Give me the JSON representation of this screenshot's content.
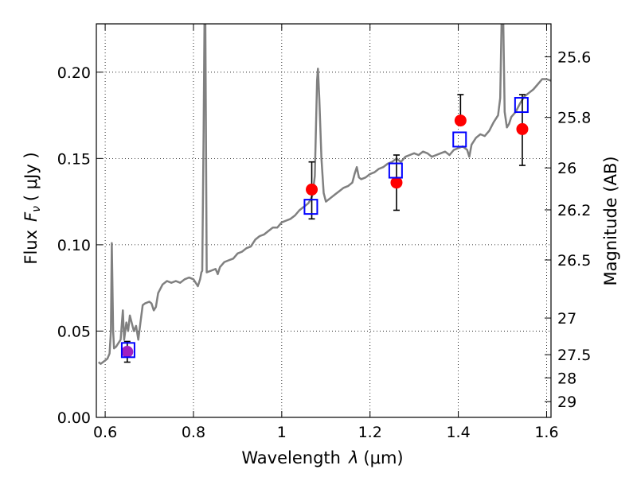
{
  "chart_data": {
    "type": "scatter",
    "xlabel": "Wavelength",
    "xlabel_symbol": "λ",
    "xlabel_unit": "(μm)",
    "ylabel": "Flux",
    "ylabel_symbol": "F",
    "ylabel_subscript": "ν",
    "ylabel_unit": "( μJy )",
    "y2label": "Magnitude (AB)",
    "xlim": [
      0.58,
      1.61
    ],
    "ylim": [
      0.0,
      0.228
    ],
    "grid": true,
    "x_ticks": [
      0.6,
      0.8,
      1.0,
      1.2,
      1.4,
      1.6
    ],
    "x_tick_labels": [
      "0.6",
      "0.8",
      "1",
      "1.2",
      "1.4",
      "1.6"
    ],
    "y_ticks": [
      0.0,
      0.05,
      0.1,
      0.15,
      0.2
    ],
    "y_tick_labels": [
      "0.00",
      "0.05",
      "0.10",
      "0.15",
      "0.20"
    ],
    "mag_ticks": [
      {
        "label": "25.6",
        "mag": 25.6
      },
      {
        "label": "25.8",
        "mag": 25.8
      },
      {
        "label": "26",
        "mag": 26.0
      },
      {
        "label": "26.2",
        "mag": 26.2
      },
      {
        "label": "26.5",
        "mag": 26.5
      },
      {
        "label": "27",
        "mag": 27.0
      },
      {
        "label": "27.5",
        "mag": 27.5
      },
      {
        "label": "28",
        "mag": 28.0
      },
      {
        "label": "29",
        "mag": 29.0
      }
    ],
    "series": [
      {
        "kind": "model-spectrum",
        "color": "#808080",
        "points": [
          [
            0.585,
            0.032
          ],
          [
            0.59,
            0.031
          ],
          [
            0.595,
            0.032
          ],
          [
            0.6,
            0.033
          ],
          [
            0.605,
            0.034
          ],
          [
            0.61,
            0.037
          ],
          [
            0.613,
            0.05
          ],
          [
            0.615,
            0.101
          ],
          [
            0.618,
            0.05
          ],
          [
            0.62,
            0.04
          ],
          [
            0.625,
            0.041
          ],
          [
            0.63,
            0.043
          ],
          [
            0.635,
            0.045
          ],
          [
            0.64,
            0.062
          ],
          [
            0.643,
            0.045
          ],
          [
            0.648,
            0.055
          ],
          [
            0.652,
            0.05
          ],
          [
            0.656,
            0.059
          ],
          [
            0.66,
            0.055
          ],
          [
            0.665,
            0.05
          ],
          [
            0.67,
            0.053
          ],
          [
            0.675,
            0.045
          ],
          [
            0.68,
            0.055
          ],
          [
            0.685,
            0.065
          ],
          [
            0.69,
            0.066
          ],
          [
            0.7,
            0.067
          ],
          [
            0.705,
            0.066
          ],
          [
            0.71,
            0.062
          ],
          [
            0.715,
            0.064
          ],
          [
            0.72,
            0.072
          ],
          [
            0.73,
            0.077
          ],
          [
            0.74,
            0.079
          ],
          [
            0.75,
            0.078
          ],
          [
            0.76,
            0.079
          ],
          [
            0.77,
            0.078
          ],
          [
            0.78,
            0.08
          ],
          [
            0.79,
            0.081
          ],
          [
            0.8,
            0.08
          ],
          [
            0.81,
            0.076
          ],
          [
            0.815,
            0.08
          ],
          [
            0.818,
            0.084
          ],
          [
            0.82,
            0.085
          ],
          [
            0.823,
            0.165
          ],
          [
            0.825,
            0.228
          ],
          [
            0.827,
            0.228
          ],
          [
            0.83,
            0.084
          ],
          [
            0.84,
            0.085
          ],
          [
            0.85,
            0.086
          ],
          [
            0.855,
            0.083
          ],
          [
            0.86,
            0.087
          ],
          [
            0.87,
            0.09
          ],
          [
            0.88,
            0.091
          ],
          [
            0.89,
            0.092
          ],
          [
            0.9,
            0.095
          ],
          [
            0.91,
            0.096
          ],
          [
            0.92,
            0.098
          ],
          [
            0.93,
            0.099
          ],
          [
            0.94,
            0.103
          ],
          [
            0.95,
            0.105
          ],
          [
            0.96,
            0.106
          ],
          [
            0.97,
            0.108
          ],
          [
            0.98,
            0.11
          ],
          [
            0.99,
            0.11
          ],
          [
            1.0,
            0.113
          ],
          [
            1.01,
            0.114
          ],
          [
            1.02,
            0.115
          ],
          [
            1.03,
            0.117
          ],
          [
            1.04,
            0.12
          ],
          [
            1.05,
            0.122
          ],
          [
            1.06,
            0.124
          ],
          [
            1.065,
            0.126
          ],
          [
            1.07,
            0.129
          ],
          [
            1.075,
            0.14
          ],
          [
            1.08,
            0.195
          ],
          [
            1.082,
            0.202
          ],
          [
            1.085,
            0.185
          ],
          [
            1.09,
            0.15
          ],
          [
            1.095,
            0.13
          ],
          [
            1.1,
            0.125
          ],
          [
            1.11,
            0.127
          ],
          [
            1.12,
            0.129
          ],
          [
            1.13,
            0.131
          ],
          [
            1.14,
            0.133
          ],
          [
            1.15,
            0.134
          ],
          [
            1.16,
            0.136
          ],
          [
            1.165,
            0.141
          ],
          [
            1.17,
            0.145
          ],
          [
            1.175,
            0.139
          ],
          [
            1.18,
            0.138
          ],
          [
            1.19,
            0.139
          ],
          [
            1.2,
            0.141
          ],
          [
            1.21,
            0.142
          ],
          [
            1.22,
            0.144
          ],
          [
            1.23,
            0.145
          ],
          [
            1.24,
            0.147
          ],
          [
            1.25,
            0.148
          ],
          [
            1.26,
            0.15
          ],
          [
            1.27,
            0.148
          ],
          [
            1.28,
            0.151
          ],
          [
            1.29,
            0.152
          ],
          [
            1.3,
            0.153
          ],
          [
            1.31,
            0.152
          ],
          [
            1.32,
            0.154
          ],
          [
            1.33,
            0.153
          ],
          [
            1.34,
            0.151
          ],
          [
            1.35,
            0.152
          ],
          [
            1.36,
            0.153
          ],
          [
            1.37,
            0.154
          ],
          [
            1.38,
            0.152
          ],
          [
            1.39,
            0.155
          ],
          [
            1.4,
            0.156
          ],
          [
            1.41,
            0.157
          ],
          [
            1.42,
            0.155
          ],
          [
            1.425,
            0.151
          ],
          [
            1.43,
            0.158
          ],
          [
            1.44,
            0.162
          ],
          [
            1.45,
            0.164
          ],
          [
            1.46,
            0.163
          ],
          [
            1.47,
            0.166
          ],
          [
            1.48,
            0.171
          ],
          [
            1.49,
            0.175
          ],
          [
            1.495,
            0.185
          ],
          [
            1.498,
            0.228
          ],
          [
            1.502,
            0.228
          ],
          [
            1.505,
            0.177
          ],
          [
            1.51,
            0.168
          ],
          [
            1.515,
            0.17
          ],
          [
            1.52,
            0.174
          ],
          [
            1.53,
            0.177
          ],
          [
            1.54,
            0.182
          ],
          [
            1.55,
            0.186
          ],
          [
            1.56,
            0.188
          ],
          [
            1.57,
            0.19
          ],
          [
            1.58,
            0.193
          ],
          [
            1.59,
            0.196
          ],
          [
            1.6,
            0.196
          ],
          [
            1.61,
            0.195
          ]
        ]
      },
      {
        "kind": "observed-photometry",
        "color": "#ff0000",
        "points": [
          {
            "x": 1.068,
            "y": 0.132,
            "err_lo": 0.017,
            "err_hi": 0.016
          },
          {
            "x": 1.26,
            "y": 0.136,
            "err_lo": 0.016,
            "err_hi": 0.016
          },
          {
            "x": 1.405,
            "y": 0.172,
            "err_lo": 0.0,
            "err_hi": 0.015
          },
          {
            "x": 1.545,
            "y": 0.167,
            "err_lo": 0.021,
            "err_hi": 0.02
          },
          {
            "x": 0.65,
            "y": 0.038,
            "err_lo": 0.006,
            "err_hi": 0.006,
            "color": "#a020c0"
          }
        ]
      },
      {
        "kind": "model-photometry",
        "color": "#0000ff",
        "points": [
          {
            "x": 0.652,
            "y": 0.039
          },
          {
            "x": 1.066,
            "y": 0.122
          },
          {
            "x": 1.258,
            "y": 0.143
          },
          {
            "x": 1.403,
            "y": 0.161
          },
          {
            "x": 1.543,
            "y": 0.181
          }
        ]
      }
    ]
  }
}
